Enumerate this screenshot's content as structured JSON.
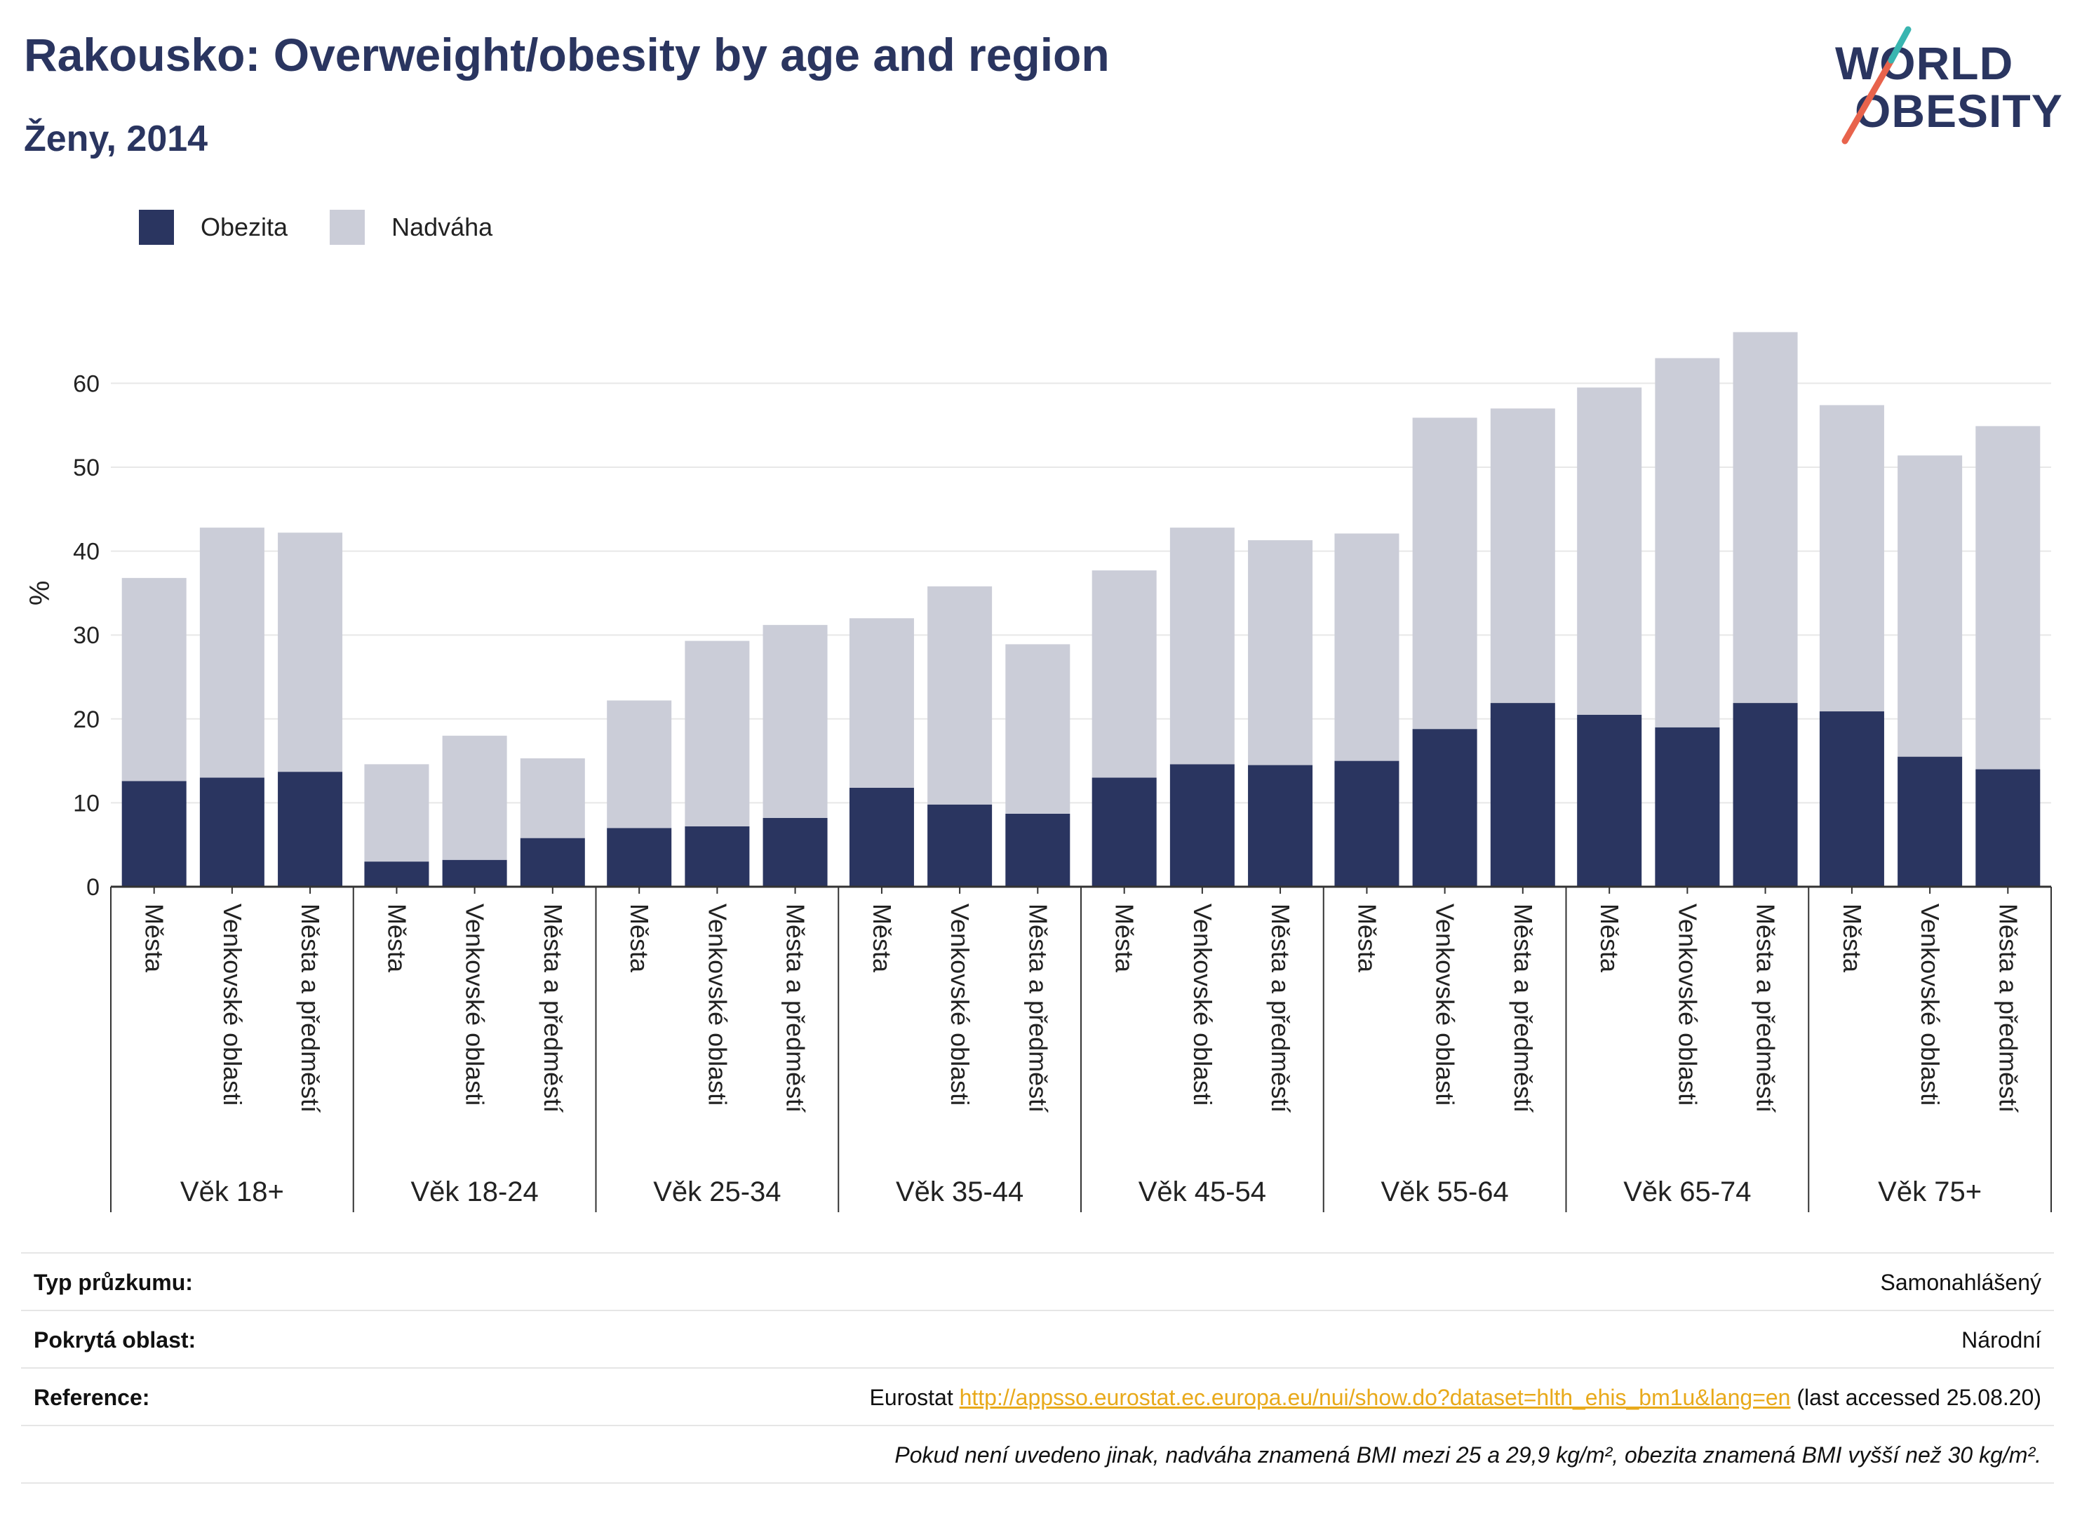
{
  "header": {
    "title": "Rakousko: Overweight/obesity by age and region",
    "subtitle": "Ženy, 2014"
  },
  "logo": {
    "line1": "WORLD",
    "line2": "OBESITY",
    "accent_colors": [
      "#e8634c",
      "#39b5b0"
    ]
  },
  "colors": {
    "obezita": "#2a3560",
    "nadvaha": "#cbcdd8",
    "axis": "#333333",
    "grid": "#e8e8e8",
    "link": "#e8a91a"
  },
  "chart_data": {
    "type": "bar",
    "stacked": true,
    "ylabel": "%",
    "ylim": [
      0,
      70
    ],
    "yticks": [
      0,
      10,
      20,
      30,
      40,
      50,
      60
    ],
    "grid": true,
    "legend_position": "top-left",
    "groups": [
      "Věk 18+",
      "Věk 18-24",
      "Věk 25-34",
      "Věk 35-44",
      "Věk 45-54",
      "Věk 55-64",
      "Věk 65-74",
      "Věk 75+"
    ],
    "categories": [
      "Města",
      "Venkovské oblasti",
      "Města a předměstí"
    ],
    "series": [
      {
        "name": "Obezita",
        "values": [
          [
            12.6,
            13.0,
            13.7
          ],
          [
            3.0,
            3.2,
            5.8
          ],
          [
            7.0,
            7.2,
            8.2
          ],
          [
            11.8,
            9.8,
            8.7
          ],
          [
            13.0,
            14.6,
            14.5
          ],
          [
            15.0,
            18.8,
            21.9
          ],
          [
            20.5,
            19.0,
            21.9
          ],
          [
            20.9,
            15.5,
            14.0
          ]
        ]
      },
      {
        "name": "Nadváha",
        "values": [
          [
            24.2,
            29.8,
            28.5
          ],
          [
            11.6,
            14.8,
            9.5
          ],
          [
            15.2,
            22.1,
            23.0
          ],
          [
            20.2,
            26.0,
            20.2
          ],
          [
            24.7,
            28.2,
            26.8
          ],
          [
            27.1,
            37.1,
            35.1
          ],
          [
            39.0,
            44.0,
            44.2
          ],
          [
            36.5,
            35.9,
            40.9
          ]
        ]
      }
    ]
  },
  "info": {
    "rows": [
      {
        "label": "Typ průzkumu:",
        "value": "Samonahlášený"
      },
      {
        "label": "Pokrytá oblast:",
        "value": "Národní"
      },
      {
        "label": "Reference:",
        "value_prefix": "Eurostat",
        "link_text": "http://appsso.eurostat.ec.europa.eu/nui/show.do?dataset=hlth_ehis_bm1u&lang=en",
        "value_suffix": "(last accessed 25.08.20)"
      }
    ],
    "note": "Pokud není uvedeno jinak, nadváha znamená BMI mezi 25 a 29,9 kg/m², obezita znamená BMI vyšší než 30 kg/m²."
  }
}
